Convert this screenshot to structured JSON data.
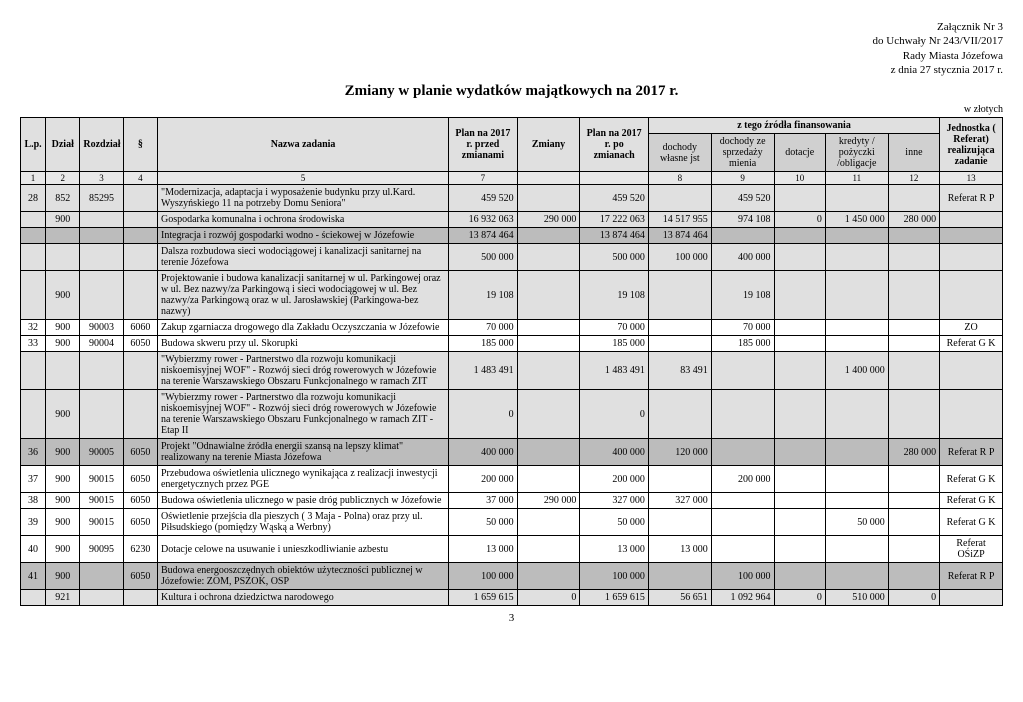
{
  "header": {
    "line1": "Załącznik Nr 3",
    "line2": "do Uchwały Nr 243/VII/2017",
    "line3": "Rady Miasta Józefowa",
    "line4": "z dnia 27 stycznia 2017 r."
  },
  "title": "Zmiany w planie wydatków majątkowych na 2017 r.",
  "currency_note": "w złotych",
  "columns": {
    "lp": "L.p.",
    "dzial": "Dział",
    "rozdzial": "Rozdział",
    "par": "§",
    "nazwa": "Nazwa zadania",
    "plan_przed": "Plan na 2017 r. przed zmianami",
    "zmiany": "Zmiany",
    "plan_po": "Plan na 2017 r. po zmianach",
    "grp_zrodla": "z tego źródła finansowania",
    "doch_wlasne": "dochody własne jst",
    "doch_sprz": "dochody ze sprzedaży mienia",
    "dotacje": "dotacje",
    "kredyty": "kredyty / pożyczki /obligacje",
    "inne": "inne",
    "jednostka": "Jednostka ( Referat) realizująca zadanie"
  },
  "colnums": [
    "1",
    "2",
    "3",
    "4",
    "5",
    "7",
    "",
    "",
    "8",
    "9",
    "10",
    "11",
    "12",
    "13"
  ],
  "rows": [
    {
      "shade": "shaded",
      "lp": "28",
      "dz": "852",
      "roz": "85295",
      "par": "",
      "naz": "\"Modernizacja, adaptacja i wyposażenie budynku przy ul.Kard. Wyszyńskiego 11 na potrzeby Domu Seniora\"",
      "pp": "459 520",
      "zm": "",
      "po": "459 520",
      "dw": "",
      "ds": "459 520",
      "dot": "",
      "kre": "",
      "inn": "",
      "jed": "Referat R P"
    },
    {
      "shade": "shaded",
      "lp": "",
      "dz": "900",
      "roz": "",
      "par": "",
      "naz": "Gospodarka komunalna i ochrona środowiska",
      "pp": "16 932 063",
      "zm": "290 000",
      "po": "17 222 063",
      "dw": "14 517 955",
      "ds": "974 108",
      "dot": "0",
      "kre": "1 450 000",
      "inn": "280 000",
      "jed": ""
    },
    {
      "shade": "dark",
      "lp": "",
      "dz": "",
      "roz": "",
      "par": "",
      "naz": "Integracja i rozwój gospodarki wodno - ściekowej w Józefowie",
      "pp": "13 874 464",
      "zm": "",
      "po": "13 874 464",
      "dw": "13 874 464",
      "ds": "",
      "dot": "",
      "kre": "",
      "inn": "",
      "jed": ""
    },
    {
      "shade": "shaded",
      "lp": "",
      "dz": "",
      "roz": "",
      "par": "",
      "naz": "Dalsza rozbudowa sieci wodociągowej i kanalizacji sanitarnej na terenie Józefowa",
      "pp": "500 000",
      "zm": "",
      "po": "500 000",
      "dw": "100 000",
      "ds": "400 000",
      "dot": "",
      "kre": "",
      "inn": "",
      "jed": ""
    },
    {
      "shade": "shaded",
      "lp": "",
      "dz": "900",
      "roz": "",
      "par": "",
      "naz": "Projektowanie i budowa kanalizacji sanitarnej w ul. Parkingowej oraz w ul. Bez nazwy/za Parkingową i sieci wodociągowej w ul. Bez nazwy/za Parkingową oraz w ul. Jarosławskiej (Parkingowa-bez nazwy)",
      "pp": "19 108",
      "zm": "",
      "po": "19 108",
      "dw": "",
      "ds": "19 108",
      "dot": "",
      "kre": "",
      "inn": "",
      "jed": ""
    },
    {
      "shade": "light",
      "lp": "32",
      "dz": "900",
      "roz": "90003",
      "par": "6060",
      "naz": "Zakup zgarniacza drogowego dla Zakładu Oczyszczania w Józefowie",
      "pp": "70 000",
      "zm": "",
      "po": "70 000",
      "dw": "",
      "ds": "70 000",
      "dot": "",
      "kre": "",
      "inn": "",
      "jed": "ZO"
    },
    {
      "shade": "light",
      "lp": "33",
      "dz": "900",
      "roz": "90004",
      "par": "6050",
      "naz": "Budowa skweru przy ul. Skorupki",
      "pp": "185 000",
      "zm": "",
      "po": "185 000",
      "dw": "",
      "ds": "185 000",
      "dot": "",
      "kre": "",
      "inn": "",
      "jed": "Referat G K"
    },
    {
      "shade": "shaded",
      "lp": "",
      "dz": "",
      "roz": "",
      "par": "",
      "naz": "\"Wybierzmy rower - Partnerstwo dla rozwoju komunikacji niskoemisyjnej WOF\" - Rozwój sieci dróg rowerowych w Józefowie na terenie Warszawskiego Obszaru Funkcjonalnego w ramach ZIT",
      "pp": "1 483 491",
      "zm": "",
      "po": "1 483 491",
      "dw": "83 491",
      "ds": "",
      "dot": "",
      "kre": "1 400 000",
      "inn": "",
      "jed": ""
    },
    {
      "shade": "shaded",
      "lp": "",
      "dz": "900",
      "roz": "",
      "par": "",
      "naz": "\"Wybierzmy rower - Partnerstwo dla rozwoju komunikacji niskoemisyjnej WOF\" - Rozwój sieci dróg rowerowych w Józefowie na terenie Warszawskiego Obszaru Funkcjonalnego w ramach ZIT - Etap II",
      "pp": "0",
      "zm": "",
      "po": "0",
      "dw": "",
      "ds": "",
      "dot": "",
      "kre": "",
      "inn": "",
      "jed": ""
    },
    {
      "shade": "dark",
      "lp": "36",
      "dz": "900",
      "roz": "90005",
      "par": "6050",
      "naz": "Projekt \"Odnawialne źródła energii szansą na lepszy klimat\" realizowany na terenie Miasta Józefowa",
      "pp": "400 000",
      "zm": "",
      "po": "400 000",
      "dw": "120 000",
      "ds": "",
      "dot": "",
      "kre": "",
      "inn": "280 000",
      "jed": "Referat R P"
    },
    {
      "shade": "light",
      "lp": "37",
      "dz": "900",
      "roz": "90015",
      "par": "6050",
      "naz": "Przebudowa oświetlenia ulicznego wynikająca z realizacji inwestycji energetycznych przez PGE",
      "pp": "200 000",
      "zm": "",
      "po": "200 000",
      "dw": "",
      "ds": "200 000",
      "dot": "",
      "kre": "",
      "inn": "",
      "jed": "Referat G K"
    },
    {
      "shade": "light",
      "lp": "38",
      "dz": "900",
      "roz": "90015",
      "par": "6050",
      "naz": "Budowa oświetlenia ulicznego w pasie dróg publicznych w Józefowie",
      "pp": "37 000",
      "zm": "290 000",
      "po": "327 000",
      "dw": "327 000",
      "ds": "",
      "dot": "",
      "kre": "",
      "inn": "",
      "jed": "Referat G K"
    },
    {
      "shade": "light",
      "lp": "39",
      "dz": "900",
      "roz": "90015",
      "par": "6050",
      "naz": "Oświetlenie przejścia dla pieszych ( 3 Maja - Polna) oraz przy ul. Piłsudskiego (pomiędzy Wąską a Werbny)",
      "pp": "50 000",
      "zm": "",
      "po": "50 000",
      "dw": "",
      "ds": "",
      "dot": "",
      "kre": "50 000",
      "inn": "",
      "jed": "Referat G K"
    },
    {
      "shade": "light",
      "lp": "40",
      "dz": "900",
      "roz": "90095",
      "par": "6230",
      "naz": "Dotacje celowe na usuwanie i unieszkodliwianie azbestu",
      "pp": "13 000",
      "zm": "",
      "po": "13 000",
      "dw": "13 000",
      "ds": "",
      "dot": "",
      "kre": "",
      "inn": "",
      "jed": "Referat OŚiZP"
    },
    {
      "shade": "dark",
      "lp": "41",
      "dz": "900",
      "roz": "",
      "par": "6050",
      "naz": "Budowa energooszczędnych obiektów użyteczności publicznej w Józefowie: ZOM, PSZOK, OSP",
      "pp": "100 000",
      "zm": "",
      "po": "100 000",
      "dw": "",
      "ds": "100 000",
      "dot": "",
      "kre": "",
      "inn": "",
      "jed": "Referat R P"
    },
    {
      "shade": "shaded",
      "lp": "",
      "dz": "921",
      "roz": "",
      "par": "",
      "naz": "Kultura i ochrona dziedzictwa narodowego",
      "pp": "1 659 615",
      "zm": "0",
      "po": "1 659 615",
      "dw": "56 651",
      "ds": "1 092 964",
      "dot": "0",
      "kre": "510 000",
      "inn": "0",
      "jed": ""
    }
  ],
  "page_number": "3"
}
